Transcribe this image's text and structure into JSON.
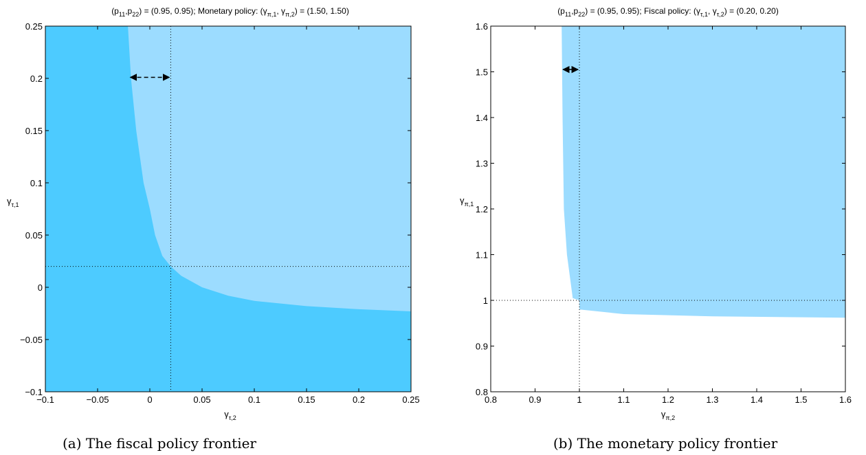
{
  "colors": {
    "dark_region": "#4dcbff",
    "light_region": "#9cdcff",
    "monetary_region": "#9cdcff",
    "axis": "#000000"
  },
  "chart_data": [
    {
      "type": "area",
      "title": {
        "prefix": "(p",
        "s1": "11",
        "mid1": ",p",
        "s2": "22",
        "mid2": ") = (0.95, 0.95); Monetary policy: (γ",
        "s3": "π,1",
        "mid3": ", γ",
        "s4": "π,2",
        "suffix": ") = (1.50, 1.50)"
      },
      "xlabel": {
        "main": "γ",
        "sub": "τ,2"
      },
      "ylabel": {
        "main": "γ",
        "sub": "τ,1"
      },
      "xlim": [
        -0.1,
        0.25
      ],
      "ylim": [
        -0.1,
        0.25
      ],
      "xticks": [
        -0.1,
        -0.05,
        0,
        0.05,
        0.1,
        0.15,
        0.2,
        0.25
      ],
      "yticks": [
        -0.1,
        -0.05,
        0,
        0.05,
        0.1,
        0.15,
        0.2,
        0.25
      ],
      "xtick_labels": [
        "−0.1",
        "−0.05",
        "0",
        "0.05",
        "0.1",
        "0.15",
        "0.2",
        "0.25"
      ],
      "ytick_labels": [
        "−0.1",
        "−0.05",
        "0",
        "0.05",
        "0.1",
        "0.15",
        "0.2",
        "0.25"
      ],
      "frontier": [
        [
          -0.021,
          0.25
        ],
        [
          -0.018,
          0.2
        ],
        [
          -0.013,
          0.15
        ],
        [
          -0.006,
          0.1
        ],
        [
          0.0,
          0.075
        ],
        [
          0.005,
          0.05
        ],
        [
          0.012,
          0.03
        ],
        [
          0.02,
          0.02
        ],
        [
          0.03,
          0.011
        ],
        [
          0.05,
          0.0
        ],
        [
          0.075,
          -0.008
        ],
        [
          0.1,
          -0.013
        ],
        [
          0.15,
          -0.018
        ],
        [
          0.2,
          -0.021
        ],
        [
          0.25,
          -0.023
        ]
      ],
      "reference_x": 0.02,
      "reference_y": 0.02,
      "arrow": {
        "from": -0.02,
        "to": 0.02,
        "y": 0.201,
        "style": "dashed"
      },
      "caption": "(a) The fiscal policy frontier"
    },
    {
      "type": "area",
      "title": {
        "prefix": "(p",
        "s1": "11",
        "mid1": ",p",
        "s2": "22",
        "mid2": ") = (0.95, 0.95); Fiscal policy: (γ",
        "s3": "τ,1",
        "mid3": ", γ",
        "s4": "τ,2",
        "suffix": ") = (0.20, 0.20)"
      },
      "xlabel": {
        "main": "γ",
        "sub": "π,2"
      },
      "ylabel": {
        "main": "γ",
        "sub": "π,1"
      },
      "xlim": [
        0.8,
        1.6
      ],
      "ylim": [
        0.8,
        1.6
      ],
      "xticks": [
        0.8,
        0.9,
        1,
        1.1,
        1.2,
        1.3,
        1.4,
        1.5,
        1.6
      ],
      "yticks": [
        0.8,
        0.9,
        1,
        1.1,
        1.2,
        1.3,
        1.4,
        1.5,
        1.6
      ],
      "xtick_labels": [
        "0.8",
        "0.9",
        "1",
        "1.1",
        "1.2",
        "1.3",
        "1.4",
        "1.5",
        "1.6"
      ],
      "ytick_labels": [
        "0.8",
        "0.9",
        "1",
        "1.1",
        "1.2",
        "1.3",
        "1.4",
        "1.5",
        "1.6"
      ],
      "frontier": [
        [
          0.96,
          1.6
        ],
        [
          0.962,
          1.4
        ],
        [
          0.965,
          1.2
        ],
        [
          0.972,
          1.1
        ],
        [
          0.985,
          1.005
        ],
        [
          1.0,
          1.0
        ],
        [
          1.0,
          0.98
        ],
        [
          1.1,
          0.97
        ],
        [
          1.3,
          0.965
        ],
        [
          1.6,
          0.962
        ]
      ],
      "reference_x": 1.0,
      "reference_y": 1.0,
      "arrow": {
        "from": 0.96,
        "to": 1.0,
        "y": 1.505,
        "style": "solid"
      },
      "caption": "(b) The monetary policy frontier"
    }
  ]
}
